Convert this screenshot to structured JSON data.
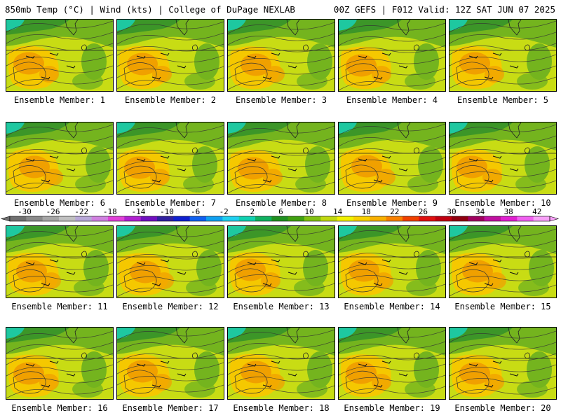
{
  "header": {
    "left": "850mb Temp (°C) | Wind (kts) | College of DuPage NEXLAB",
    "right": "00Z GEFS | F012 Valid: 12Z SAT JUN 07 2025"
  },
  "members": [
    {
      "label": "Ensemble Member: 1"
    },
    {
      "label": "Ensemble Member: 2"
    },
    {
      "label": "Ensemble Member: 3"
    },
    {
      "label": "Ensemble Member: 4"
    },
    {
      "label": "Ensemble Member: 5"
    },
    {
      "label": "Ensemble Member: 6"
    },
    {
      "label": "Ensemble Member: 7"
    },
    {
      "label": "Ensemble Member: 8"
    },
    {
      "label": "Ensemble Member: 9"
    },
    {
      "label": "Ensemble Member: 10"
    },
    {
      "label": "Ensemble Member: 11"
    },
    {
      "label": "Ensemble Member: 12"
    },
    {
      "label": "Ensemble Member: 13"
    },
    {
      "label": "Ensemble Member: 14"
    },
    {
      "label": "Ensemble Member: 15"
    },
    {
      "label": "Ensemble Member: 16"
    },
    {
      "label": "Ensemble Member: 17"
    },
    {
      "label": "Ensemble Member: 18"
    },
    {
      "label": "Ensemble Member: 19"
    },
    {
      "label": "Ensemble Member: 20"
    }
  ],
  "colorbar": {
    "labels": [
      "-30",
      "-26",
      "-22",
      "-18",
      "-14",
      "-10",
      "-6",
      "-2",
      "2",
      "6",
      "10",
      "14",
      "18",
      "22",
      "26",
      "30",
      "34",
      "38",
      "42"
    ],
    "colors": [
      "#707070",
      "#8a8a8a",
      "#a6a6a6",
      "#c0c0c0",
      "#b8a8d8",
      "#d080e0",
      "#e040d8",
      "#b020d0",
      "#7010c0",
      "#3020a0",
      "#1020d0",
      "#1060f0",
      "#10a0f0",
      "#20d0f0",
      "#10d0b0",
      "#10b060",
      "#209020",
      "#40a010",
      "#80c010",
      "#c0d810",
      "#f0f000",
      "#f8d000",
      "#f8b000",
      "#f88000",
      "#f04000",
      "#e01010",
      "#c00010",
      "#900010",
      "#a00060",
      "#c010a0",
      "#e020d0",
      "#f060f0",
      "#f8a0f8"
    ]
  },
  "map_colors": {
    "warm_core": "#f0a000",
    "warm": "#f5c800",
    "mild": "#c8dc14",
    "cool": "#74b41e",
    "cooler": "#3c9628",
    "cold": "#1ec8a0"
  }
}
